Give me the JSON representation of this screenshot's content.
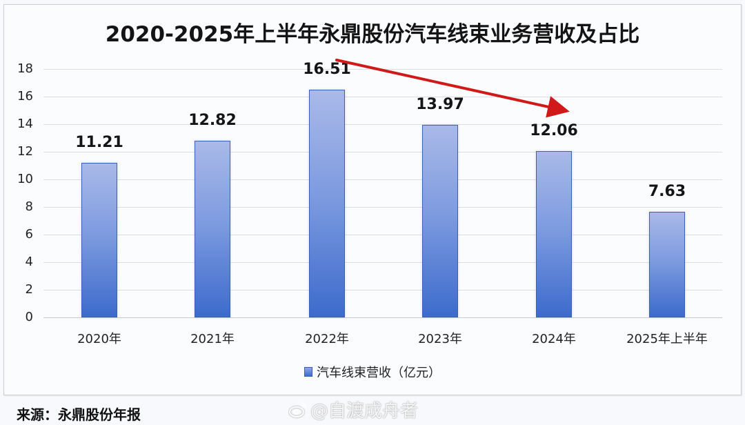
{
  "chart_data": {
    "type": "bar",
    "title": "2020-2025年上半年永鼎股份汽车线束业务营收及占比",
    "categories": [
      "2020年",
      "2021年",
      "2022年",
      "2023年",
      "2024年",
      "2025年上半年"
    ],
    "series": [
      {
        "name": "汽车线束营收（亿元）",
        "values": [
          11.21,
          12.82,
          16.51,
          13.97,
          12.06,
          7.63
        ],
        "color": "#4a74d0"
      }
    ],
    "data_labels": [
      "11.21",
      "12.82",
      "16.51",
      "13.97",
      "12.06",
      "7.63"
    ],
    "xlabel": "",
    "ylabel": "",
    "ylim": [
      0,
      18
    ],
    "yticks": [
      "0",
      "2",
      "4",
      "6",
      "8",
      "10",
      "12",
      "14",
      "16",
      "18"
    ],
    "grid": true,
    "legend_position": "bottom",
    "annotations": [
      {
        "type": "arrow",
        "color": "#d01919",
        "from_category": "2022年",
        "to_category": "2024年",
        "meaning": "declining trend"
      }
    ]
  },
  "footer": {
    "source": "来源：永鼎股份年报",
    "watermark": "@自渡成舟者"
  },
  "colors": {
    "bar_top": "#a9b9e8",
    "bar_bottom": "#3d6bcc",
    "bar_border": "#3a5fb8",
    "arrow": "#d01919",
    "gridline": "#dadde3"
  }
}
